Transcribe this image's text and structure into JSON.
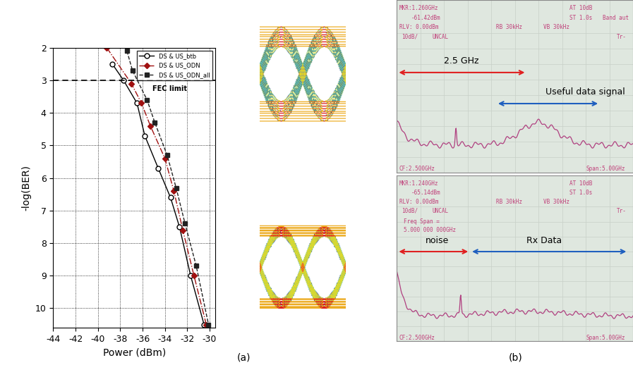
{
  "panel_labels": [
    "(a)",
    "(b)"
  ],
  "chart_data": {
    "type": "line",
    "x_label": "Power (dBm)",
    "y_label": "-log(BER)",
    "xlim": [
      -44,
      -29.5
    ],
    "ylim": [
      10.6,
      2
    ],
    "xticks": [
      -44,
      -42,
      -40,
      -38,
      -36,
      -34,
      -32,
      -30
    ],
    "yticks": [
      2,
      3,
      4,
      5,
      6,
      7,
      8,
      9,
      10
    ],
    "grid": true,
    "legend": "upper right",
    "annotations": [
      {
        "text": "FEC limit",
        "y": 3
      }
    ],
    "series": [
      {
        "name": "DS & US_btb",
        "color": "#000000",
        "marker": "circle_open",
        "line_style": "solid",
        "x": [
          -38.7,
          -37.7,
          -36.5,
          -35.8,
          -34.6,
          -33.5,
          -32.7,
          -31.7,
          -30.5
        ],
        "values": [
          2.5,
          3.0,
          3.7,
          4.7,
          5.7,
          6.6,
          7.5,
          9.0,
          10.5
        ]
      },
      {
        "name": "DS & US_ODN",
        "color": "#a01010",
        "marker": "diamond",
        "line_style": "dashdot",
        "x": [
          -39.2,
          -37.0,
          -36.1,
          -35.3,
          -34.0,
          -33.2,
          -32.4,
          -31.4,
          -30.3
        ],
        "values": [
          2.0,
          3.1,
          3.7,
          4.4,
          5.4,
          6.4,
          7.6,
          9.0,
          10.5
        ]
      },
      {
        "name": "DS & US_ODN_all",
        "color": "#222222",
        "marker": "square",
        "line_style": "dashed",
        "x": [
          -37.4,
          -36.9,
          -35.6,
          -34.9,
          -33.8,
          -33.0,
          -32.2,
          -31.2,
          -30.1
        ],
        "values": [
          2.1,
          2.7,
          3.6,
          4.3,
          5.3,
          6.3,
          7.4,
          8.7,
          10.5
        ]
      }
    ]
  },
  "spectrum_screens": [
    {
      "texts": [
        "MKR:1.260GHz",
        "-61.42dBm",
        "AT 10dB",
        "ST 1.0s",
        "Band aut",
        "RLV: 0.00dBm",
        "RB 30kHz",
        "VB 30kHz",
        "10dB/",
        "UNCAL",
        "Tr-",
        "CF:2.500GHz",
        "Span:5.00GHz"
      ],
      "annotations": [
        "2.5 GHz",
        "Useful data signal"
      ]
    },
    {
      "texts": [
        "MKR:1.240GHz",
        "-65.14dBm",
        "AT 10dB",
        "ST 1.0s",
        "RLV: 0.00dBm",
        "RB 30kHz",
        "VB 30kHz",
        "10dB/",
        "UNCAL",
        "Freq Span =",
        "5.000 000 000GHz",
        "Tr-",
        "CF:2.500GHz",
        "Span:5.00GHz"
      ],
      "annotations": [
        "noise",
        "Rx Data"
      ]
    }
  ]
}
